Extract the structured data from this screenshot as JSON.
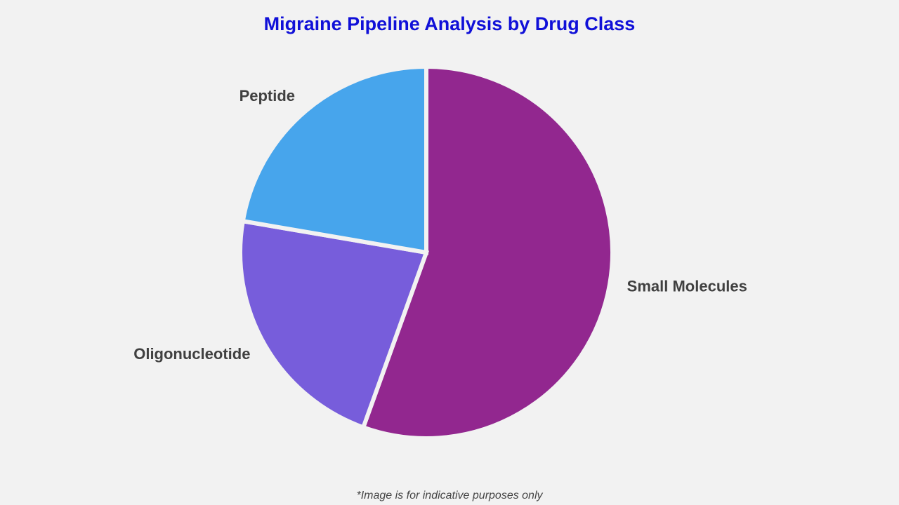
{
  "chart_data": {
    "type": "pie",
    "title": "Migraine Pipeline Analysis by Drug Class",
    "categories": [
      "Small Molecules",
      "Oligonucleotide",
      "Peptide"
    ],
    "values": [
      55.5,
      22.2,
      22.3
    ],
    "colors": [
      "#92278f",
      "#775ddb",
      "#47a5ec"
    ],
    "footnote": "*Image is for indicative purposes only"
  }
}
